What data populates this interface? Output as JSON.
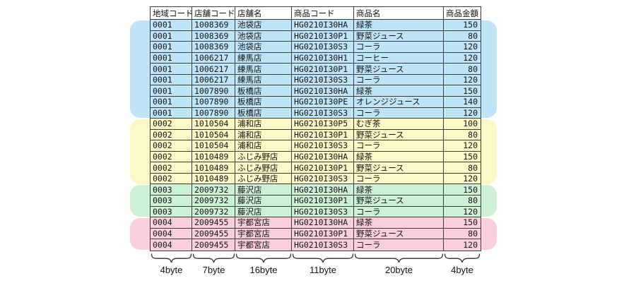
{
  "page": {
    "background_color": "#ffffff"
  },
  "table": {
    "columns": [
      {
        "key": "region_code",
        "label": "地域コード",
        "byte_label": "4byte"
      },
      {
        "key": "store_code",
        "label": "店舗コード",
        "byte_label": "7byte"
      },
      {
        "key": "store_name",
        "label": "店舗名",
        "byte_label": "16byte"
      },
      {
        "key": "product_code",
        "label": "商品コード",
        "byte_label": "11byte"
      },
      {
        "key": "product_name",
        "label": "商品名",
        "byte_label": "20byte"
      },
      {
        "key": "product_amount",
        "label": "商品金額",
        "byte_label": "4byte"
      }
    ],
    "groups": [
      {
        "region_code": "0001",
        "highlight_color": "#bfe3f7",
        "rows": [
          [
            "0001",
            "1008369",
            "池袋店",
            "HG0210I30HA",
            "緑茶",
            "150"
          ],
          [
            "0001",
            "1008369",
            "池袋店",
            "HG0210I30P1",
            "野菜ジュース",
            "80"
          ],
          [
            "0001",
            "1008369",
            "池袋店",
            "HG0210I30S3",
            "コーラ",
            "120"
          ],
          [
            "0001",
            "1006217",
            "練馬店",
            "HG0210I30H1",
            "コーヒー",
            "120"
          ],
          [
            "0001",
            "1006217",
            "練馬店",
            "HG0210I30P1",
            "野菜ジュース",
            "80"
          ],
          [
            "0001",
            "1006217",
            "練馬店",
            "HG0210I30S3",
            "コーラ",
            "120"
          ],
          [
            "0001",
            "1007890",
            "板橋店",
            "HG0210I30HA",
            "緑茶",
            "150"
          ],
          [
            "0001",
            "1007890",
            "板橋店",
            "HG0210I30PE",
            "オレンジジュース",
            "140"
          ],
          [
            "0001",
            "1007890",
            "板橋店",
            "HG0210I30S3",
            "コーラ",
            "120"
          ]
        ]
      },
      {
        "region_code": "0002",
        "highlight_color": "#fbf7c6",
        "rows": [
          [
            "0002",
            "1010504",
            "浦和店",
            "HG0210I30P5",
            "むぎ茶",
            "100"
          ],
          [
            "0002",
            "1010504",
            "浦和店",
            "HG0210I30P1",
            "野菜ジュース",
            "80"
          ],
          [
            "0002",
            "1010504",
            "浦和店",
            "HG0210I30S3",
            "コーラ",
            "120"
          ],
          [
            "0002",
            "1010489",
            "ふじみ野店",
            "HG0210I30HA",
            "緑茶",
            "150"
          ],
          [
            "0002",
            "1010489",
            "ふじみ野店",
            "HG0210I30P1",
            "野菜ジュース",
            "80"
          ],
          [
            "0002",
            "1010489",
            "ふじみ野店",
            "HG0210I30S3",
            "コーラ",
            "120"
          ]
        ]
      },
      {
        "region_code": "0003",
        "highlight_color": "#cdf1d4",
        "rows": [
          [
            "0003",
            "2009732",
            "藤沢店",
            "HG0210I30HA",
            "緑茶",
            "150"
          ],
          [
            "0003",
            "2009732",
            "藤沢店",
            "HG0210I30P1",
            "野菜ジュース",
            "80"
          ],
          [
            "0003",
            "2009732",
            "藤沢店",
            "HG0210I30S3",
            "コーラ",
            "120"
          ]
        ]
      },
      {
        "region_code": "0004",
        "highlight_color": "#f9cfdd",
        "rows": [
          [
            "0004",
            "2009455",
            "宇都宮店",
            "HG0210I30HA",
            "緑茶",
            "150"
          ],
          [
            "0004",
            "2009455",
            "宇都宮店",
            "HG0210I30P1",
            "野菜ジュース",
            "80"
          ],
          [
            "0004",
            "2009455",
            "宇都宮店",
            "HG0210I30S3",
            "コーラ",
            "120"
          ]
        ]
      }
    ]
  },
  "annotations": {
    "byte_labels": [
      "4byte",
      "7byte",
      "16byte",
      "11byte",
      "20byte",
      "4byte"
    ]
  },
  "colors": {
    "grid_border": "#3c3c3c",
    "text": "#141414",
    "group_0001": "#bfe3f7",
    "group_0002": "#fbf7c6",
    "group_0003": "#cdf1d4",
    "group_0004": "#f9cfdd"
  }
}
